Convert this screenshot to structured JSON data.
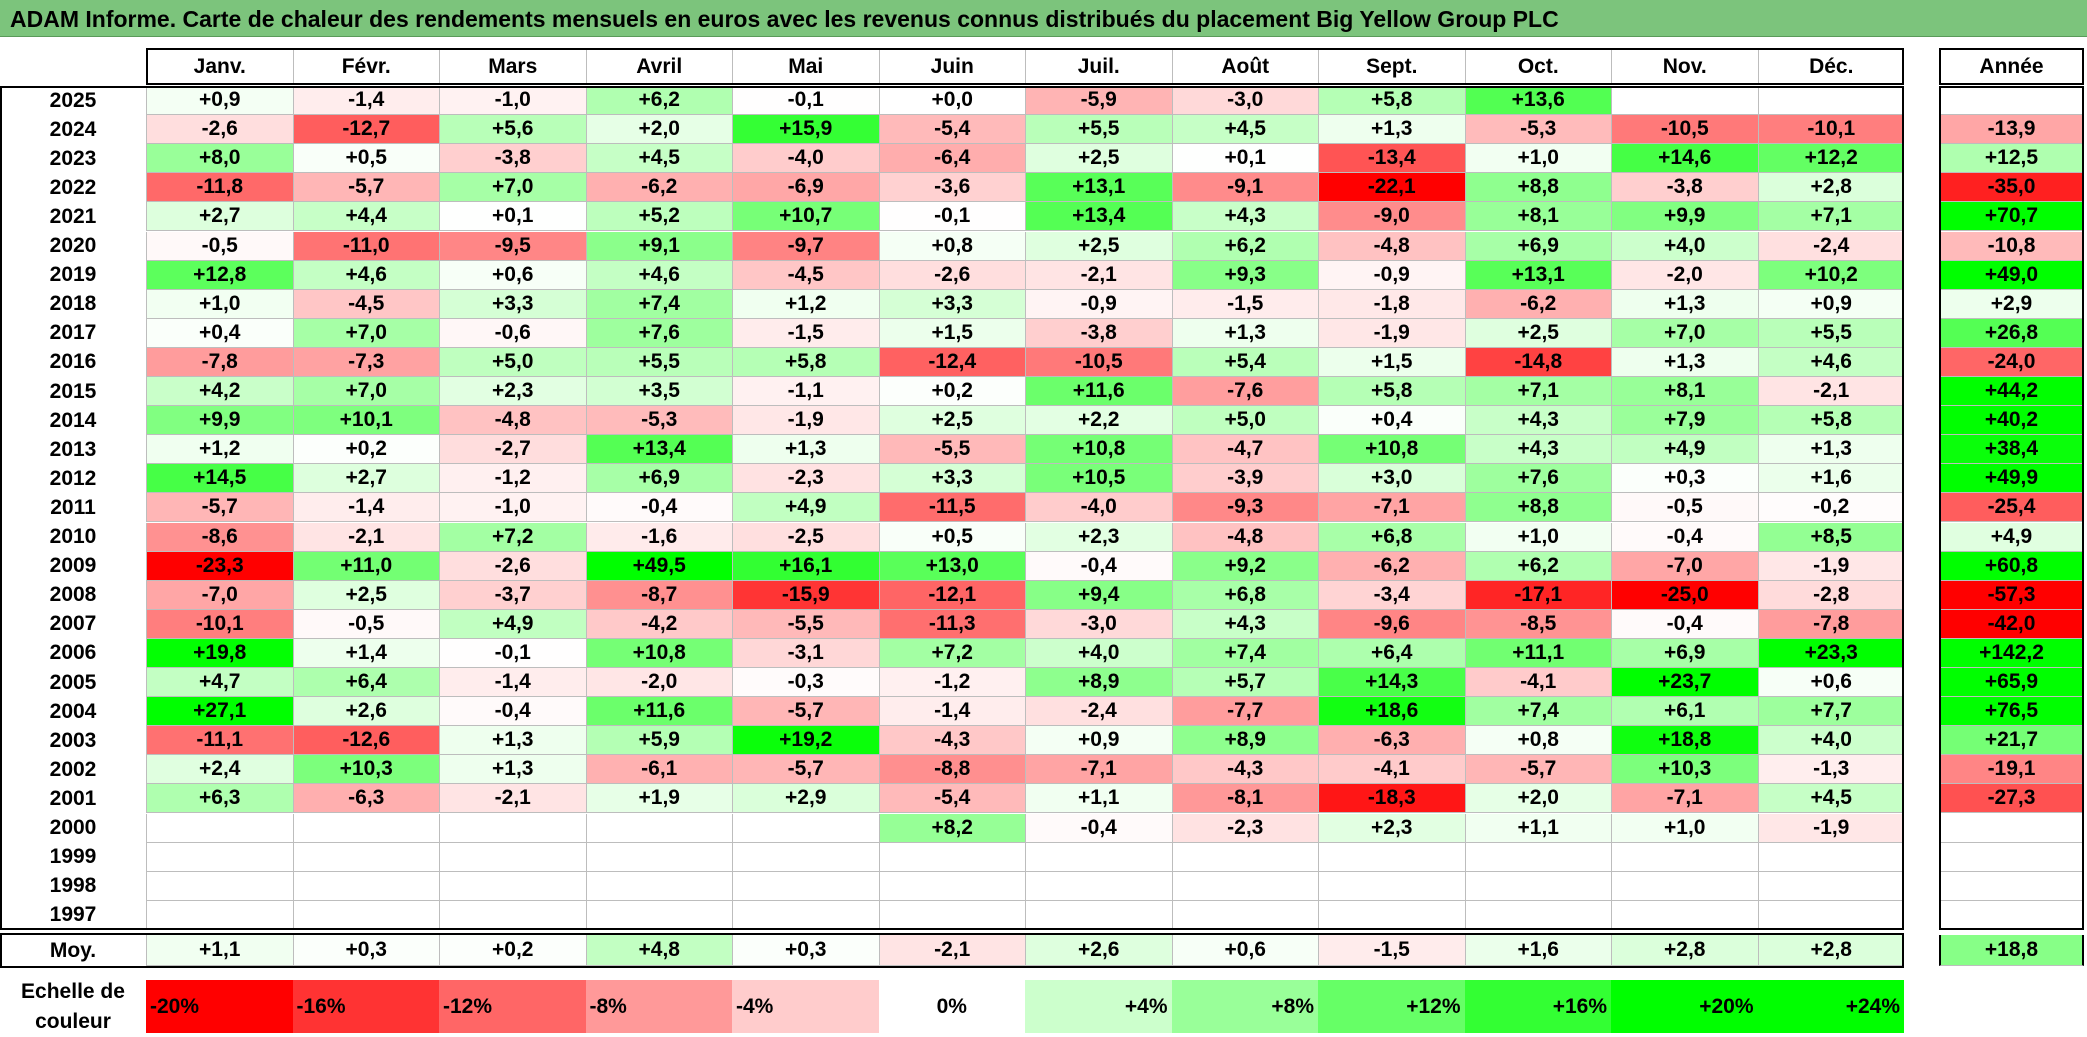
{
  "title": "ADAM Informe. Carte de chaleur des rendements mensuels en euros avec les revenus connus distribués du placement Big Yellow Group PLC",
  "colors": {
    "title_bar": "#7cc47c",
    "max_red": "#ff0000",
    "max_green": "#00ff00",
    "neutral": "#ffffff"
  },
  "chart_data": {
    "type": "heatmap",
    "months": [
      "Janv.",
      "Févr.",
      "Mars",
      "Avril",
      "Mai",
      "Juin",
      "Juil.",
      "Août",
      "Sept.",
      "Oct.",
      "Nov.",
      "Déc."
    ],
    "annual_header": "Année",
    "rows": [
      {
        "year": "2025",
        "values": [
          "+0,9",
          "-1,4",
          "-1,0",
          "+6,2",
          "-0,1",
          "+0,0",
          "-5,9",
          "-3,0",
          "+5,8",
          "+13,6",
          "",
          ""
        ],
        "annual": ""
      },
      {
        "year": "2024",
        "values": [
          "-2,6",
          "-12,7",
          "+5,6",
          "+2,0",
          "+15,9",
          "-5,4",
          "+5,5",
          "+4,5",
          "+1,3",
          "-5,3",
          "-10,5",
          "-10,1"
        ],
        "annual": "-13,9"
      },
      {
        "year": "2023",
        "values": [
          "+8,0",
          "+0,5",
          "-3,8",
          "+4,5",
          "-4,0",
          "-6,4",
          "+2,5",
          "+0,1",
          "-13,4",
          "+1,0",
          "+14,6",
          "+12,2"
        ],
        "annual": "+12,5"
      },
      {
        "year": "2022",
        "values": [
          "-11,8",
          "-5,7",
          "+7,0",
          "-6,2",
          "-6,9",
          "-3,6",
          "+13,1",
          "-9,1",
          "-22,1",
          "+8,8",
          "-3,8",
          "+2,8"
        ],
        "annual": "-35,0"
      },
      {
        "year": "2021",
        "values": [
          "+2,7",
          "+4,4",
          "+0,1",
          "+5,2",
          "+10,7",
          "-0,1",
          "+13,4",
          "+4,3",
          "-9,0",
          "+8,1",
          "+9,9",
          "+7,1"
        ],
        "annual": "+70,7"
      },
      {
        "year": "2020",
        "values": [
          "-0,5",
          "-11,0",
          "-9,5",
          "+9,1",
          "-9,7",
          "+0,8",
          "+2,5",
          "+6,2",
          "-4,8",
          "+6,9",
          "+4,0",
          "-2,4"
        ],
        "annual": "-10,8"
      },
      {
        "year": "2019",
        "values": [
          "+12,8",
          "+4,6",
          "+0,6",
          "+4,6",
          "-4,5",
          "-2,6",
          "-2,1",
          "+9,3",
          "-0,9",
          "+13,1",
          "-2,0",
          "+10,2"
        ],
        "annual": "+49,0"
      },
      {
        "year": "2018",
        "values": [
          "+1,0",
          "-4,5",
          "+3,3",
          "+7,4",
          "+1,2",
          "+3,3",
          "-0,9",
          "-1,5",
          "-1,8",
          "-6,2",
          "+1,3",
          "+0,9"
        ],
        "annual": "+2,9"
      },
      {
        "year": "2017",
        "values": [
          "+0,4",
          "+7,0",
          "-0,6",
          "+7,6",
          "-1,5",
          "+1,5",
          "-3,8",
          "+1,3",
          "-1,9",
          "+2,5",
          "+7,0",
          "+5,5"
        ],
        "annual": "+26,8"
      },
      {
        "year": "2016",
        "values": [
          "-7,8",
          "-7,3",
          "+5,0",
          "+5,5",
          "+5,8",
          "-12,4",
          "-10,5",
          "+5,4",
          "+1,5",
          "-14,8",
          "+1,3",
          "+4,6"
        ],
        "annual": "-24,0"
      },
      {
        "year": "2015",
        "values": [
          "+4,2",
          "+7,0",
          "+2,3",
          "+3,5",
          "-1,1",
          "+0,2",
          "+11,6",
          "-7,6",
          "+5,8",
          "+7,1",
          "+8,1",
          "-2,1"
        ],
        "annual": "+44,2"
      },
      {
        "year": "2014",
        "values": [
          "+9,9",
          "+10,1",
          "-4,8",
          "-5,3",
          "-1,9",
          "+2,5",
          "+2,2",
          "+5,0",
          "+0,4",
          "+4,3",
          "+7,9",
          "+5,8"
        ],
        "annual": "+40,2"
      },
      {
        "year": "2013",
        "values": [
          "+1,2",
          "+0,2",
          "-2,7",
          "+13,4",
          "+1,3",
          "-5,5",
          "+10,8",
          "-4,7",
          "+10,8",
          "+4,3",
          "+4,9",
          "+1,3"
        ],
        "annual": "+38,4"
      },
      {
        "year": "2012",
        "values": [
          "+14,5",
          "+2,7",
          "-1,2",
          "+6,9",
          "-2,3",
          "+3,3",
          "+10,5",
          "-3,9",
          "+3,0",
          "+7,6",
          "+0,3",
          "+1,6"
        ],
        "annual": "+49,9"
      },
      {
        "year": "2011",
        "values": [
          "-5,7",
          "-1,4",
          "-1,0",
          "-0,4",
          "+4,9",
          "-11,5",
          "-4,0",
          "-9,3",
          "-7,1",
          "+8,8",
          "-0,5",
          "-0,2"
        ],
        "annual": "-25,4"
      },
      {
        "year": "2010",
        "values": [
          "-8,6",
          "-2,1",
          "+7,2",
          "-1,6",
          "-2,5",
          "+0,5",
          "+2,3",
          "-4,8",
          "+6,8",
          "+1,0",
          "-0,4",
          "+8,5"
        ],
        "annual": "+4,9"
      },
      {
        "year": "2009",
        "values": [
          "-23,3",
          "+11,0",
          "-2,6",
          "+49,5",
          "+16,1",
          "+13,0",
          "-0,4",
          "+9,2",
          "-6,2",
          "+6,2",
          "-7,0",
          "-1,9"
        ],
        "annual": "+60,8"
      },
      {
        "year": "2008",
        "values": [
          "-7,0",
          "+2,5",
          "-3,7",
          "-8,7",
          "-15,9",
          "-12,1",
          "+9,4",
          "+6,8",
          "-3,4",
          "-17,1",
          "-25,0",
          "-2,8"
        ],
        "annual": "-57,3"
      },
      {
        "year": "2007",
        "values": [
          "-10,1",
          "-0,5",
          "+4,9",
          "-4,2",
          "-5,5",
          "-11,3",
          "-3,0",
          "+4,3",
          "-9,6",
          "-8,5",
          "-0,4",
          "-7,8"
        ],
        "annual": "-42,0"
      },
      {
        "year": "2006",
        "values": [
          "+19,8",
          "+1,4",
          "-0,1",
          "+10,8",
          "-3,1",
          "+7,2",
          "+4,0",
          "+7,4",
          "+6,4",
          "+11,1",
          "+6,9",
          "+23,3"
        ],
        "annual": "+142,2"
      },
      {
        "year": "2005",
        "values": [
          "+4,7",
          "+6,4",
          "-1,4",
          "-2,0",
          "-0,3",
          "-1,2",
          "+8,9",
          "+5,7",
          "+14,3",
          "-4,1",
          "+23,7",
          "+0,6"
        ],
        "annual": "+65,9"
      },
      {
        "year": "2004",
        "values": [
          "+27,1",
          "+2,6",
          "-0,4",
          "+11,6",
          "-5,7",
          "-1,4",
          "-2,4",
          "-7,7",
          "+18,6",
          "+7,4",
          "+6,1",
          "+7,7"
        ],
        "annual": "+76,5"
      },
      {
        "year": "2003",
        "values": [
          "-11,1",
          "-12,6",
          "+1,3",
          "+5,9",
          "+19,2",
          "-4,3",
          "+0,9",
          "+8,9",
          "-6,3",
          "+0,8",
          "+18,8",
          "+4,0"
        ],
        "annual": "+21,7"
      },
      {
        "year": "2002",
        "values": [
          "+2,4",
          "+10,3",
          "+1,3",
          "-6,1",
          "-5,7",
          "-8,8",
          "-7,1",
          "-4,3",
          "-4,1",
          "-5,7",
          "+10,3",
          "-1,3"
        ],
        "annual": "-19,1"
      },
      {
        "year": "2001",
        "values": [
          "+6,3",
          "-6,3",
          "-2,1",
          "+1,9",
          "+2,9",
          "-5,4",
          "+1,1",
          "-8,1",
          "-18,3",
          "+2,0",
          "-7,1",
          "+4,5"
        ],
        "annual": "-27,3"
      },
      {
        "year": "2000",
        "values": [
          "",
          "",
          "",
          "",
          "",
          "+8,2",
          "-0,4",
          "-2,3",
          "+2,3",
          "+1,1",
          "+1,0",
          "-1,9"
        ],
        "annual": ""
      },
      {
        "year": "1999",
        "values": [
          "",
          "",
          "",
          "",
          "",
          "",
          "",
          "",
          "",
          "",
          "",
          ""
        ],
        "annual": ""
      },
      {
        "year": "1998",
        "values": [
          "",
          "",
          "",
          "",
          "",
          "",
          "",
          "",
          "",
          "",
          "",
          ""
        ],
        "annual": ""
      },
      {
        "year": "1997",
        "values": [
          "",
          "",
          "",
          "",
          "",
          "",
          "",
          "",
          "",
          "",
          "",
          ""
        ],
        "annual": ""
      }
    ],
    "average": {
      "label": "Moy.",
      "values": [
        "+1,1",
        "+0,3",
        "+0,2",
        "+4,8",
        "+0,3",
        "-2,1",
        "+2,6",
        "+0,6",
        "-1,5",
        "+1,6",
        "+2,8",
        "+2,8"
      ],
      "annual": "+18,8"
    },
    "scale": {
      "label_line1": "Echelle de",
      "label_line2": "couleur",
      "steps": [
        {
          "label": "-20%",
          "value": -20
        },
        {
          "label": "-16%",
          "value": -16
        },
        {
          "label": "-12%",
          "value": -12
        },
        {
          "label": "-8%",
          "value": -8
        },
        {
          "label": "-4%",
          "value": -4
        },
        {
          "label": "0%",
          "value": 0
        },
        {
          "label": "+4%",
          "value": 4
        },
        {
          "label": "+8%",
          "value": 8
        },
        {
          "label": "+12%",
          "value": 12
        },
        {
          "label": "+16%",
          "value": 16
        },
        {
          "label": "+20%",
          "value": 20
        },
        {
          "label": "+24%",
          "value": 24
        }
      ]
    }
  }
}
